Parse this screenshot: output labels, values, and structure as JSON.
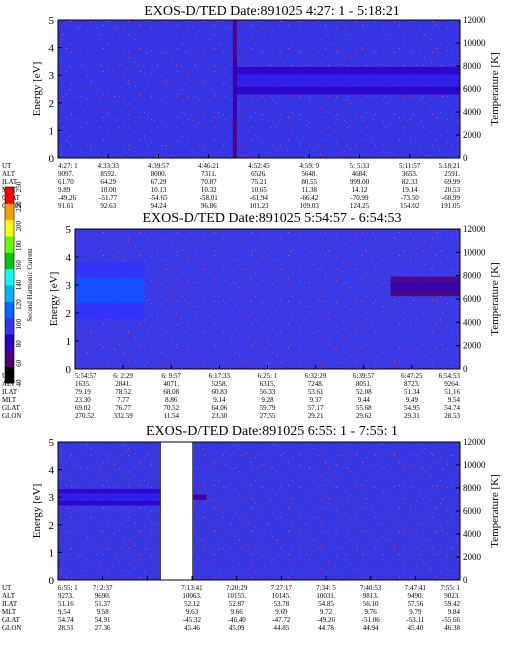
{
  "chart_data": [
    {
      "type": "heatmap",
      "title": "EXOS-D/TED   Date:891025  4:27: 1 - 5:18:21",
      "ylabel": "Energy [eV]",
      "y2label": "Temperature [K]",
      "ylim": [
        0,
        5
      ],
      "y2lim": [
        0,
        12000
      ],
      "yticks": [
        "0",
        "1",
        "2",
        "3",
        "4",
        "5"
      ],
      "y2ticks": [
        "0",
        "2000",
        "4000",
        "6000",
        "8000",
        "10000",
        "12000"
      ],
      "gaps": [],
      "bands": [
        {
          "label": "emission band",
          "x0": 0.44,
          "x1": 1.0,
          "e0": 2.3,
          "e1": 3.3,
          "level": 75
        },
        {
          "label": "vertical stripe",
          "x0": 0.435,
          "x1": 0.445,
          "e0": 0.0,
          "e1": 5.0,
          "level": 55
        }
      ],
      "table_rows": [
        "UT",
        "ALT",
        "ILAT",
        "MLT",
        "GLAT",
        "GLON"
      ],
      "table": [
        [
          "4:27: 1",
          "4:33:33",
          "4:39:57",
          "4:46:21",
          "4:52:45",
          "4:59: 9",
          "5: 5:33",
          "5:11:57",
          "5:18:21"
        ],
        [
          "9097.",
          "8592.",
          "8000.",
          "7311.",
          "6526.",
          "5648.",
          "4684.",
          "3653.",
          "2591."
        ],
        [
          "61.70",
          "64.29",
          "67.29",
          "70.87",
          "75.21",
          "80.55",
          "999.00",
          "82.33",
          "69.99"
        ],
        [
          "9.89",
          "10.00",
          "10.13",
          "10.32",
          "10.65",
          "11.38",
          "14.12",
          "19.14",
          "20.53"
        ],
        [
          "-49.26",
          "-51.77",
          "-54.65",
          "-58.01",
          "-61.94",
          "-66.42",
          "-70.99",
          "-73.50",
          "-68.99"
        ],
        [
          "91.61",
          "92.63",
          "94.24",
          "96.86",
          "101.23",
          "109.03",
          "124.25",
          "154.02",
          "191.05"
        ]
      ]
    },
    {
      "type": "heatmap",
      "title": "EXOS-D/TED   Date:891025  5:54:57 - 6:54:53",
      "ylabel": "Energy [eV]",
      "y2label": "Temperature [K]",
      "ylim": [
        0,
        5
      ],
      "y2lim": [
        0,
        12000
      ],
      "yticks": [
        "0",
        "1",
        "2",
        "3",
        "4",
        "5"
      ],
      "y2ticks": [
        "0",
        "2000",
        "4000",
        "6000",
        "8000",
        "10000",
        "12000"
      ],
      "gaps": [],
      "bands": [
        {
          "label": "early bright patch",
          "x0": 0.0,
          "x1": 0.18,
          "e0": 1.8,
          "e1": 3.8,
          "level": 90
        },
        {
          "label": "late band",
          "x0": 0.82,
          "x1": 1.0,
          "e0": 2.6,
          "e1": 3.3,
          "level": 65
        }
      ],
      "table_rows": [
        "UT",
        "ALT",
        "ILAT",
        "MLT",
        "GLAT",
        "GLON"
      ],
      "table": [
        [
          "5:54:57",
          "6: 2:29",
          "6: 9:57",
          "6:17:33",
          "6:25: 1",
          "6:32:29",
          "6:39:57",
          "6:47:25",
          "6:54:53"
        ],
        [
          "1635.",
          "2841.",
          "4071.",
          "5258.",
          "6315.",
          "7248.",
          "8051.",
          "8723.",
          "9264."
        ],
        [
          "79.19",
          "78.52",
          "68.08",
          "60.83",
          "56.33",
          "53.61",
          "52.08",
          "51.34",
          "51.16"
        ],
        [
          "23.30",
          "7.77",
          "8.86",
          "9.14",
          "9.28",
          "9.37",
          "9.44",
          "9.49",
          "9.54"
        ],
        [
          "69.02",
          "76.77",
          "70.52",
          "64.06",
          "59.79",
          "57.17",
          "55.68",
          "54.95",
          "54.74"
        ],
        [
          "270.52",
          "332.59",
          "11.54",
          "23.30",
          "27.55",
          "29.21",
          "29.62",
          "29.31",
          "28.53"
        ]
      ]
    },
    {
      "type": "heatmap",
      "title": "EXOS-D/TED   Date:891025  6:55: 1 - 7:55: 1",
      "ylabel": "Energy [eV]",
      "y2label": "Temperature [K]",
      "ylim": [
        0,
        5
      ],
      "y2lim": [
        0,
        12000
      ],
      "yticks": [
        "0",
        "1",
        "2",
        "3",
        "4",
        "5"
      ],
      "y2ticks": [
        "0",
        "2000",
        "4000",
        "6000",
        "8000",
        "10000",
        "12000"
      ],
      "gaps": [
        {
          "x0": 0.255,
          "x1": 0.335
        }
      ],
      "bands": [
        {
          "label": "early band",
          "x0": 0.0,
          "x1": 0.255,
          "e0": 2.7,
          "e1": 3.3,
          "level": 70
        },
        {
          "label": "short band",
          "x0": 0.335,
          "x1": 0.37,
          "e0": 2.9,
          "e1": 3.1,
          "level": 55
        }
      ],
      "table_rows": [
        "UT",
        "ALT",
        "ILAT",
        "MLT",
        "GLAT",
        "GLON"
      ],
      "table": [
        [
          "6:55: 1",
          "7: 2:37",
          "",
          "7:13:41",
          "7:20:29",
          "7:27:17",
          "7:34: 5",
          "7:40:53",
          "7:47:41",
          "7:55: 1"
        ],
        [
          "9273.",
          "9690.",
          "",
          "10063.",
          "10155.",
          "10145.",
          "10031.",
          "9813.",
          "9490.",
          "9023."
        ],
        [
          "51.16",
          "51.37",
          "",
          "52.12",
          "52.87",
          "53.78",
          "54.85",
          "56.10",
          "57.56",
          "59.42"
        ],
        [
          "9.54",
          "9.58",
          "",
          "9.63",
          "9.66",
          "9.69",
          "9.72",
          "9.76",
          "9.79",
          "9.84"
        ],
        [
          "54.74",
          "54.91",
          "",
          "-45.32",
          "-46.40",
          "-47.72",
          "-49.26",
          "-51.06",
          "-53.11",
          "-55.66"
        ],
        [
          "28.51",
          "27.36",
          "",
          "45.46",
          "45.09",
          "44.85",
          "44.78",
          "44.94",
          "45.40",
          "46.38"
        ]
      ]
    }
  ],
  "colorbar": {
    "label": "Second Harmonic Current",
    "min": 40,
    "max": 250,
    "ticks": [
      "40",
      "60",
      "80",
      "100",
      "120",
      "140",
      "160",
      "180",
      "200",
      "220",
      "250"
    ],
    "colors": [
      "#000000",
      "#500078",
      "#2a00c8",
      "#3333ff",
      "#0064ff",
      "#00b4ff",
      "#00ffff",
      "#00c800",
      "#64ff00",
      "#ffff00",
      "#ffa000",
      "#ff0000"
    ]
  }
}
